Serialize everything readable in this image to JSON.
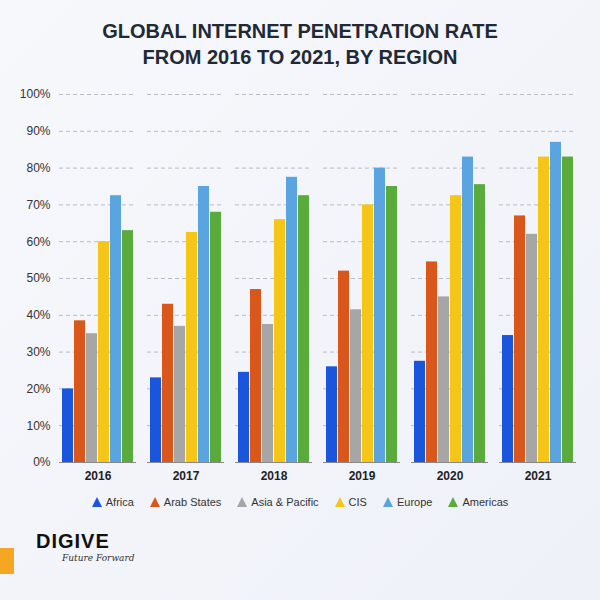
{
  "chart_data": {
    "type": "bar",
    "title": "GLOBAL INTERNET PENETRATION RATE FROM 2016 TO 2021, BY REGION",
    "categories": [
      "2016",
      "2017",
      "2018",
      "2019",
      "2020",
      "2021"
    ],
    "series": [
      {
        "name": "Africa",
        "color": "#1a56db",
        "values": [
          20,
          23,
          24.5,
          26,
          27.5,
          34.5
        ]
      },
      {
        "name": "Arab States",
        "color": "#d9571a",
        "values": [
          38.5,
          43,
          47,
          52,
          54.5,
          67
        ]
      },
      {
        "name": "Asia & Pacific",
        "color": "#a6a6a6",
        "values": [
          35,
          37,
          37.5,
          41.5,
          45,
          62
        ]
      },
      {
        "name": "CIS",
        "color": "#f5c518",
        "values": [
          60,
          62.5,
          66,
          70,
          72.5,
          83
        ]
      },
      {
        "name": "Europe",
        "color": "#5aa5e0",
        "values": [
          72.5,
          75,
          77.5,
          80,
          83,
          87
        ]
      },
      {
        "name": "Americas",
        "color": "#5aaa3c",
        "values": [
          63,
          68,
          72.5,
          75,
          75.5,
          83
        ]
      }
    ],
    "ylim": [
      0,
      100
    ],
    "yticks": [
      {
        "value": 0,
        "label": "0%"
      },
      {
        "value": 10,
        "label": "10%"
      },
      {
        "value": 20,
        "label": "20%"
      },
      {
        "value": 30,
        "label": "30%"
      },
      {
        "value": 40,
        "label": "40%"
      },
      {
        "value": 50,
        "label": "50%"
      },
      {
        "value": 60,
        "label": "60%"
      },
      {
        "value": 70,
        "label": "70%"
      },
      {
        "value": 80,
        "label": "80%"
      },
      {
        "value": 90,
        "label": "90%"
      },
      {
        "value": 100,
        "label": "100%"
      }
    ],
    "grid": true,
    "legend": "bottom",
    "annotations": [
      "DIGIVE",
      "Future Forward"
    ]
  }
}
